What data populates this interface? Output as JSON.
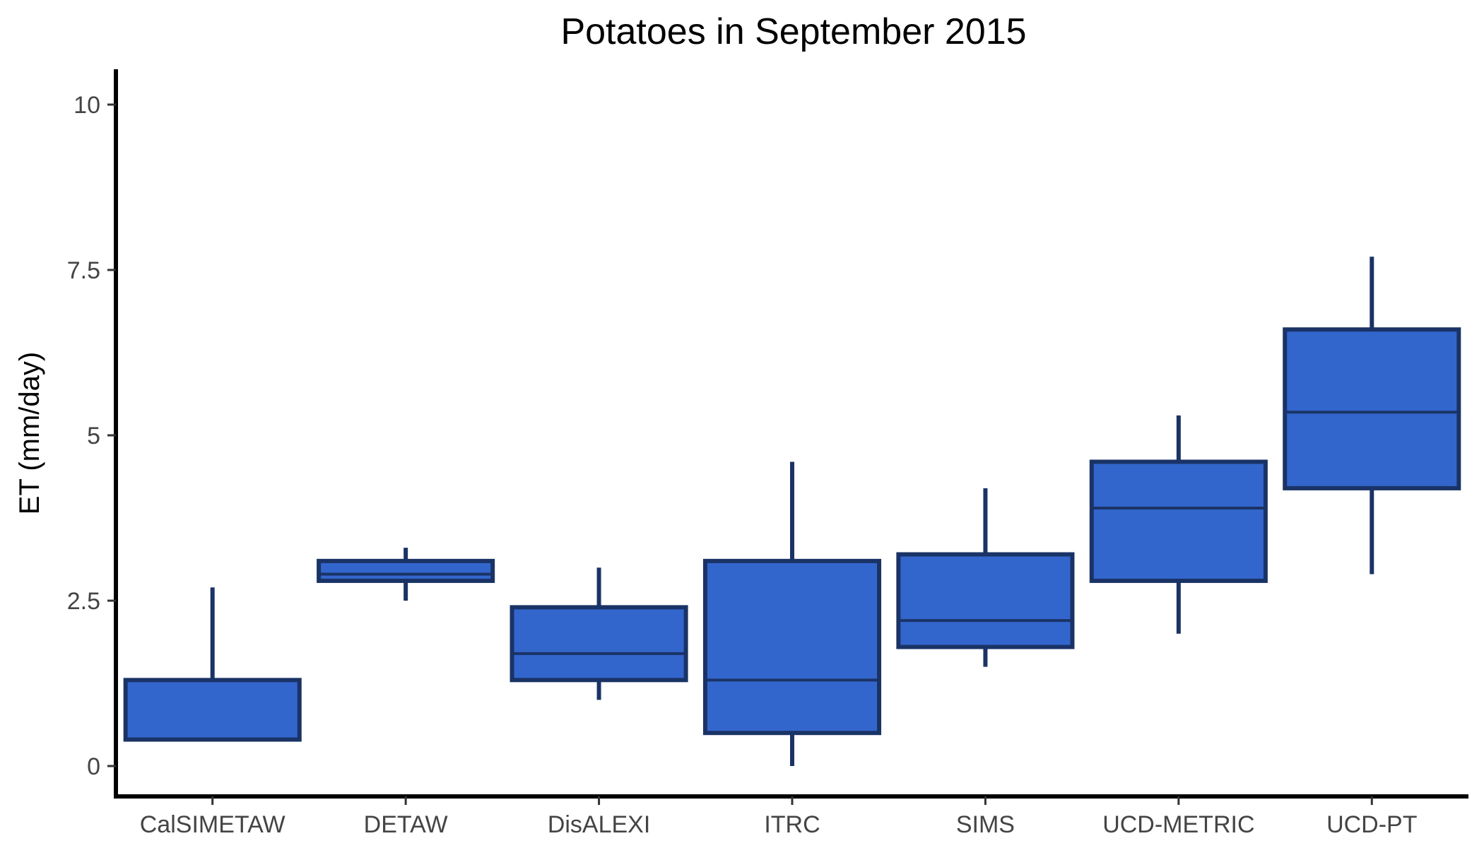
{
  "chart_data": {
    "type": "boxplot",
    "title": "Potatoes in September 2015",
    "xlabel": "",
    "ylabel": "ET (mm/day)",
    "ylim": [
      -0.5,
      10.5
    ],
    "yticks": [
      0,
      2.5,
      5,
      7.5,
      10
    ],
    "ytick_labels": [
      "0",
      "2.5",
      "5",
      "7.5",
      "10"
    ],
    "grid": false,
    "legend": "none",
    "colors": {
      "box_fill": "#3366CC",
      "box_stroke": "#1A3366"
    },
    "categories": [
      "CalSIMETAW",
      "DETAW",
      "DisALEXI",
      "ITRC",
      "SIMS",
      "UCD-METRIC",
      "UCD-PT"
    ],
    "boxes": [
      {
        "category": "CalSIMETAW",
        "min": 0.4,
        "q1": 0.4,
        "median": 0.4,
        "q3": 1.3,
        "max": 2.7
      },
      {
        "category": "DETAW",
        "min": 2.5,
        "q1": 2.8,
        "median": 2.9,
        "q3": 3.1,
        "max": 3.3
      },
      {
        "category": "DisALEXI",
        "min": 1.0,
        "q1": 1.3,
        "median": 1.7,
        "q3": 2.4,
        "max": 3.0
      },
      {
        "category": "ITRC",
        "min": 0.0,
        "q1": 0.5,
        "median": 1.3,
        "q3": 3.1,
        "max": 4.6
      },
      {
        "category": "SIMS",
        "min": 1.5,
        "q1": 1.8,
        "median": 2.2,
        "q3": 3.2,
        "max": 4.2
      },
      {
        "category": "UCD-METRIC",
        "min": 2.0,
        "q1": 2.8,
        "median": 3.9,
        "q3": 4.6,
        "max": 5.3
      },
      {
        "category": "UCD-PT",
        "min": 2.9,
        "q1": 4.2,
        "median": 5.35,
        "q3": 6.6,
        "max": 7.7
      }
    ]
  }
}
